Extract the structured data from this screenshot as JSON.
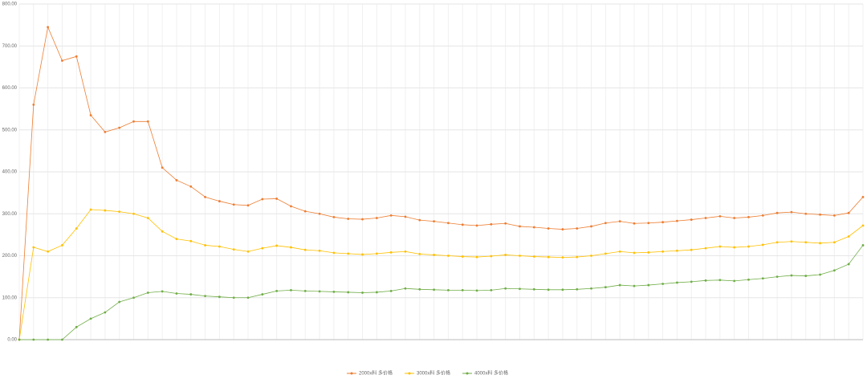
{
  "chart_data": {
    "type": "line",
    "categories": [
      null,
      null,
      null,
      null,
      null,
      null,
      null,
      null,
      null,
      null,
      null,
      null,
      null,
      null,
      null,
      null,
      null,
      null,
      null,
      null,
      null,
      null,
      null,
      null,
      null,
      null,
      null,
      null,
      null,
      null,
      null,
      null,
      null,
      null,
      null,
      null,
      null,
      null,
      null,
      null,
      null,
      null,
      null,
      null,
      null,
      null,
      null,
      null,
      null,
      null,
      null,
      null,
      null,
      null,
      null,
      null,
      null,
      null,
      null,
      null
    ],
    "series": [
      {
        "name": "2000x料 多价格",
        "color": "#ed7d31",
        "values": [
          0,
          560,
          745,
          665,
          675,
          535,
          495,
          505,
          520,
          520,
          410,
          380,
          365,
          340,
          330,
          322,
          320,
          335,
          336,
          318,
          306,
          300,
          292,
          288,
          287,
          290,
          296,
          293,
          285,
          282,
          278,
          274,
          272,
          275,
          277,
          270,
          268,
          265,
          263,
          265,
          270,
          278,
          282,
          277,
          278,
          280,
          283,
          286,
          290,
          294,
          290,
          292,
          296,
          302,
          304,
          300,
          298,
          296,
          302,
          340
        ]
      },
      {
        "name": "3000x料 多价格",
        "color": "#ffc000",
        "values": [
          0,
          220,
          210,
          225,
          265,
          310,
          308,
          305,
          300,
          290,
          258,
          240,
          235,
          225,
          222,
          215,
          210,
          218,
          224,
          220,
          214,
          212,
          207,
          205,
          203,
          205,
          208,
          210,
          204,
          202,
          200,
          198,
          197,
          199,
          202,
          200,
          198,
          197,
          196,
          197,
          200,
          205,
          210,
          207,
          208,
          210,
          212,
          214,
          218,
          222,
          220,
          222,
          226,
          232,
          234,
          232,
          230,
          232,
          246,
          272
        ]
      },
      {
        "name": "4000x料 多价格",
        "color": "#70ad47",
        "values": [
          0,
          0,
          0,
          0,
          30,
          50,
          65,
          90,
          100,
          112,
          115,
          110,
          108,
          104,
          102,
          100,
          100,
          108,
          116,
          118,
          116,
          115,
          114,
          113,
          112,
          113,
          116,
          122,
          120,
          119,
          118,
          118,
          117,
          118,
          122,
          121,
          120,
          119,
          119,
          120,
          122,
          125,
          130,
          128,
          130,
          133,
          136,
          138,
          141,
          142,
          140,
          143,
          146,
          150,
          153,
          152,
          155,
          165,
          180,
          225
        ]
      }
    ],
    "ylim": [
      0,
      800
    ],
    "yticks": [
      {
        "value": 0,
        "label": "0.00"
      },
      {
        "value": 100,
        "label": "100.00"
      },
      {
        "value": 200,
        "label": "200.00"
      },
      {
        "value": 300,
        "label": "300.00"
      },
      {
        "value": 400,
        "label": "400.00"
      },
      {
        "value": 500,
        "label": "500.00"
      },
      {
        "value": 600,
        "label": "600.00"
      },
      {
        "value": 700,
        "label": "700.00"
      },
      {
        "value": 800,
        "label": "800.00"
      }
    ],
    "grid": true,
    "legend": "bottom"
  }
}
